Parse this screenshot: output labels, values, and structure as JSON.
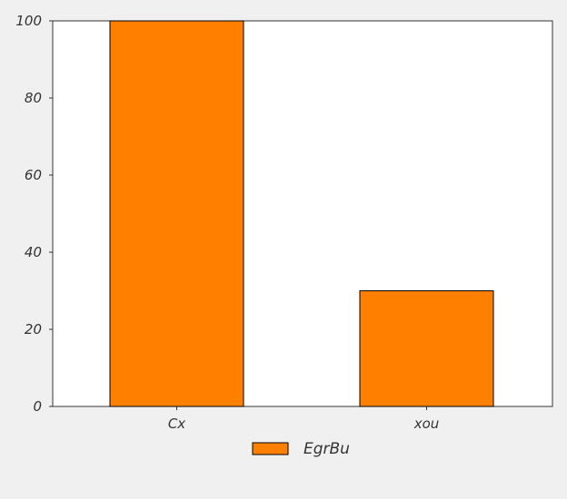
{
  "chart_data": {
    "type": "bar",
    "categories": [
      "Cx",
      "xou"
    ],
    "series": [
      {
        "name": "EgrBu",
        "values": [
          100,
          30
        ]
      }
    ],
    "ylim": [
      0,
      100
    ],
    "yticks": [
      0,
      20,
      40,
      60,
      80,
      100
    ],
    "xlabel": "",
    "ylabel": "",
    "grid": false,
    "legend": "bottom-center",
    "colors": {
      "bar": "#ff8000",
      "bar_edge": "#000000",
      "plot_bg": "#ffffff",
      "page_bg": "#f0f0f0"
    }
  }
}
